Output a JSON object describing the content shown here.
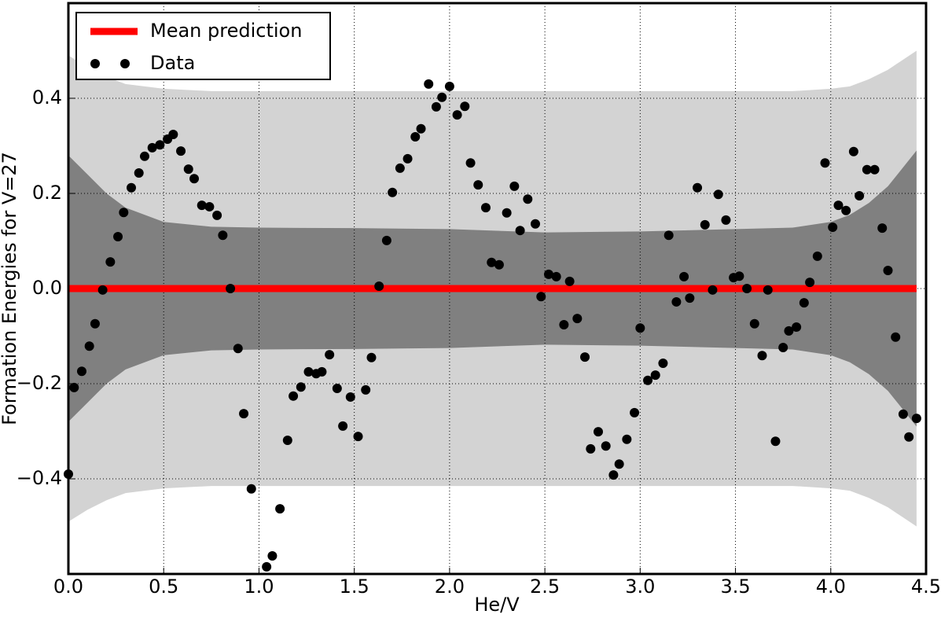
{
  "chart_data": {
    "type": "scatter",
    "xlabel": "He/V",
    "ylabel": "Formation Energies for V=27",
    "xlim": [
      0,
      4.5
    ],
    "ylim": [
      -0.6,
      0.6
    ],
    "xticks": [
      {
        "value": 0,
        "label": "0.0"
      },
      0.5,
      {
        "value": 1,
        "label": "1.0"
      },
      1.5,
      {
        "value": 2,
        "label": "2.0"
      },
      2.5,
      {
        "value": 3,
        "label": "3.0"
      },
      3.5,
      {
        "value": 4,
        "label": "4.0"
      },
      4.5
    ],
    "yticks": [
      {
        "value": -0.4,
        "label": "−0.4"
      },
      {
        "value": -0.2,
        "label": "−0.2"
      },
      {
        "value": 0,
        "label": "0.0"
      },
      0.2,
      0.4
    ],
    "grid": true,
    "legend": "upper left",
    "bands": [
      {
        "color": "#d3d3d3",
        "x": [
          0,
          0.1,
          0.2,
          0.3,
          0.5,
          0.75,
          1,
          1.5,
          2,
          2.5,
          3,
          3.5,
          3.8,
          4,
          4.1,
          4.2,
          4.3,
          4.45
        ],
        "upper": [
          0.49,
          0.465,
          0.445,
          0.43,
          0.42,
          0.415,
          0.415,
          0.415,
          0.415,
          0.415,
          0.415,
          0.415,
          0.415,
          0.42,
          0.425,
          0.44,
          0.46,
          0.5
        ],
        "lower": [
          -0.49,
          -0.465,
          -0.445,
          -0.43,
          -0.42,
          -0.415,
          -0.415,
          -0.415,
          -0.415,
          -0.415,
          -0.415,
          -0.415,
          -0.415,
          -0.42,
          -0.425,
          -0.44,
          -0.46,
          -0.5
        ]
      },
      {
        "color": "#808080",
        "x": [
          0,
          0.1,
          0.2,
          0.3,
          0.5,
          0.75,
          1,
          1.5,
          2,
          2.5,
          3,
          3.5,
          3.8,
          4,
          4.1,
          4.2,
          4.3,
          4.45
        ],
        "upper": [
          0.28,
          0.24,
          0.2,
          0.17,
          0.14,
          0.13,
          0.128,
          0.127,
          0.125,
          0.118,
          0.12,
          0.125,
          0.128,
          0.14,
          0.155,
          0.18,
          0.215,
          0.29
        ],
        "lower": [
          -0.28,
          -0.24,
          -0.2,
          -0.17,
          -0.14,
          -0.13,
          -0.128,
          -0.127,
          -0.125,
          -0.118,
          -0.12,
          -0.125,
          -0.128,
          -0.14,
          -0.155,
          -0.18,
          -0.215,
          -0.29
        ]
      }
    ],
    "series": [
      {
        "name": "Mean prediction",
        "kind": "line",
        "color": "#ff0000",
        "x": [
          0,
          4.45
        ],
        "values": [
          0,
          0
        ]
      },
      {
        "name": "Data",
        "kind": "scatter",
        "color": "#000000",
        "x": [
          0,
          0.03,
          0.07,
          0.11,
          0.14,
          0.18,
          0.22,
          0.26,
          0.29,
          0.33,
          0.37,
          0.4,
          0.44,
          0.48,
          0.52,
          0.55,
          0.59,
          0.63,
          0.66,
          0.7,
          0.74,
          0.78,
          0.81,
          0.85,
          0.89,
          0.92,
          0.96,
          1.04,
          1.07,
          1.11,
          1.15,
          1.18,
          1.22,
          1.26,
          1.3,
          1.33,
          1.37,
          1.41,
          1.44,
          1.48,
          1.52,
          1.56,
          1.59,
          1.63,
          1.67,
          1.7,
          1.74,
          1.78,
          1.82,
          1.85,
          1.89,
          1.93,
          1.96,
          2,
          2.04,
          2.08,
          2.11,
          2.15,
          2.19,
          2.22,
          2.26,
          2.3,
          2.34,
          2.37,
          2.41,
          2.45,
          2.48,
          2.52,
          2.56,
          2.6,
          2.63,
          2.67,
          2.71,
          2.74,
          2.78,
          2.82,
          2.86,
          2.89,
          2.93,
          2.97,
          3,
          3.04,
          3.08,
          3.12,
          3.15,
          3.19,
          3.23,
          3.26,
          3.3,
          3.34,
          3.38,
          3.41,
          3.45,
          3.49,
          3.52,
          3.56,
          3.6,
          3.64,
          3.67,
          3.71,
          3.75,
          3.78,
          3.82,
          3.86,
          3.89,
          3.93,
          3.97,
          4.01,
          4.04,
          4.08,
          4.12,
          4.15,
          4.19,
          4.23,
          4.27,
          4.3,
          4.34,
          4.38,
          4.41,
          4.45
        ],
        "values": [
          -0.39,
          -0.208,
          -0.174,
          -0.121,
          -0.074,
          -0.003,
          0.056,
          0.109,
          0.16,
          0.212,
          0.243,
          0.278,
          0.296,
          0.302,
          0.314,
          0.324,
          0.289,
          0.251,
          0.231,
          0.175,
          0.172,
          0.154,
          0.112,
          0,
          -0.126,
          -0.263,
          -0.421,
          -0.585,
          -0.562,
          -0.463,
          -0.319,
          -0.226,
          -0.207,
          -0.175,
          -0.179,
          -0.175,
          -0.139,
          -0.21,
          -0.289,
          -0.228,
          -0.311,
          -0.213,
          -0.145,
          0.005,
          0.101,
          0.202,
          0.253,
          0.273,
          0.319,
          0.336,
          0.43,
          0.382,
          0.402,
          0.425,
          0.365,
          0.383,
          0.264,
          0.218,
          0.17,
          0.055,
          0.05,
          0.159,
          0.215,
          0.122,
          0.188,
          0.136,
          -0.017,
          0.03,
          0.025,
          -0.076,
          0.015,
          -0.063,
          -0.144,
          -0.337,
          -0.301,
          -0.331,
          -0.392,
          -0.369,
          -0.317,
          -0.261,
          -0.083,
          -0.193,
          -0.182,
          -0.157,
          0.112,
          -0.028,
          0.025,
          -0.02,
          0.212,
          0.134,
          -0.003,
          0.198,
          0.144,
          0.023,
          0.026,
          0,
          -0.074,
          -0.141,
          -0.003,
          -0.321,
          -0.124,
          -0.089,
          -0.081,
          -0.03,
          0.013,
          0.068,
          0.264,
          0.129,
          0.175,
          0.164,
          0.288,
          0.195,
          0.25,
          0.25,
          0.127,
          0.038,
          -0.102,
          -0.264,
          -0.312,
          -0.273
        ]
      }
    ]
  }
}
